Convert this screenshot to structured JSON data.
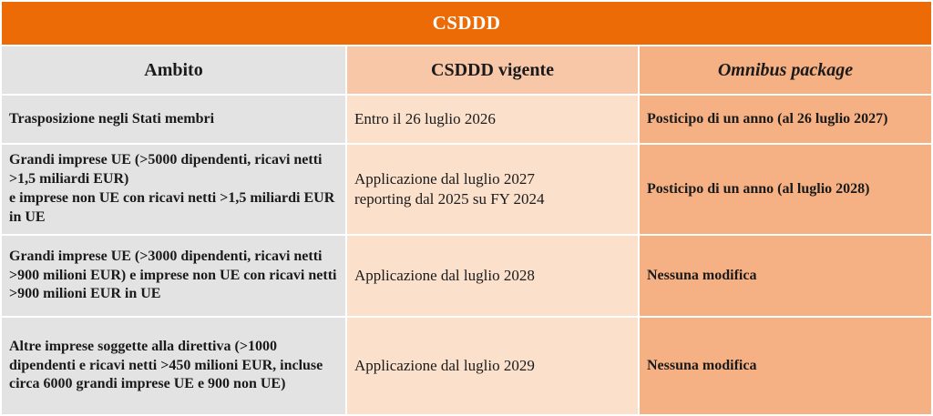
{
  "title": "CSDDD",
  "columns": [
    {
      "label": "Ambito"
    },
    {
      "label": "CSDDD vigente"
    },
    {
      "label": "Omnibus package"
    }
  ],
  "rows": [
    {
      "ambito": "Trasposizione negli Stati membri",
      "vigente": "Entro il 26 luglio 2026",
      "omnibus": "Posticipo di un anno (al 26 luglio 2027)"
    },
    {
      "ambito": "Grandi imprese UE (>5000 dipendenti, ricavi netti >1,5 miliardi EUR)\ne imprese non UE con ricavi netti >1,5 miliardi EUR in UE",
      "vigente": "Applicazione dal luglio 2027\nreporting dal 2025 su FY 2024",
      "omnibus": "Posticipo di un anno (al luglio 2028)"
    },
    {
      "ambito": "Grandi imprese UE (>3000 dipendenti, ricavi netti >900 milioni EUR) e imprese non UE con ricavi netti >900 milioni EUR in UE",
      "vigente": "Applicazione dal luglio 2028",
      "omnibus": "Nessuna modifica"
    },
    {
      "ambito": "Altre imprese soggette alla direttiva (>1000 dipendenti e ricavi netti >450 milioni EUR, incluse circa 6000 grandi imprese UE e 900 non UE)",
      "vigente": "Applicazione dal luglio 2029",
      "omnibus": "Nessuna modifica"
    }
  ],
  "colors": {
    "title_bar": "#EC6B06",
    "ambito_column": "#E4E3E3",
    "vigente_header": "#F8C7A8",
    "vigente_data": "#FBE0CC",
    "omnibus_column": "#F5B083",
    "title_text": "#FFFFFF",
    "body_text": "#1A1A1A",
    "cell_gap": "#FFFFFF"
  }
}
